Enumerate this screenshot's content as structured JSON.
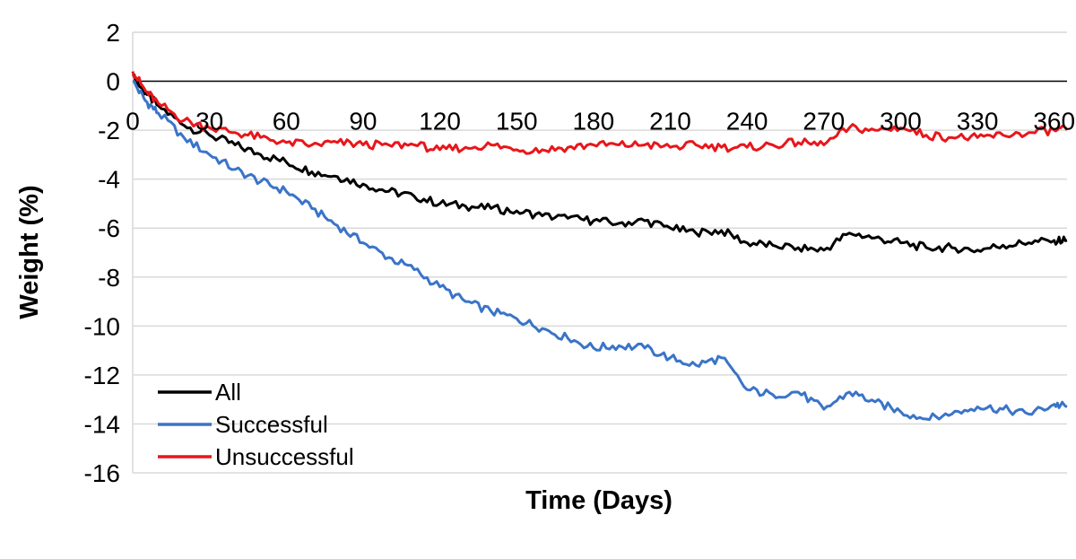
{
  "chart_data": {
    "type": "line",
    "title": "",
    "xlabel": "Time (Days)",
    "ylabel": "Weight (%)",
    "xlim": [
      0,
      365
    ],
    "ylim": [
      -16,
      2
    ],
    "xticks": [
      0,
      30,
      60,
      90,
      120,
      150,
      180,
      210,
      240,
      270,
      300,
      330,
      360
    ],
    "yticks": [
      2,
      0,
      -2,
      -4,
      -6,
      -8,
      -10,
      -12,
      -14,
      -16
    ],
    "grid": true,
    "legend_position": "bottom-left",
    "series": [
      {
        "name": "All",
        "color": "#000000",
        "x": [
          0,
          5,
          10,
          20,
          30,
          40,
          50,
          60,
          70,
          80,
          90,
          100,
          110,
          120,
          130,
          140,
          150,
          160,
          170,
          180,
          190,
          200,
          210,
          220,
          230,
          240,
          250,
          260,
          270,
          280,
          290,
          300,
          310,
          320,
          330,
          340,
          350,
          360,
          365
        ],
        "y": [
          0.2,
          -0.5,
          -1.0,
          -1.8,
          -2.2,
          -2.6,
          -3.0,
          -3.3,
          -3.7,
          -3.9,
          -4.2,
          -4.5,
          -4.7,
          -5.0,
          -5.1,
          -5.2,
          -5.3,
          -5.5,
          -5.6,
          -5.7,
          -5.8,
          -5.7,
          -6.0,
          -6.2,
          -6.1,
          -6.6,
          -6.7,
          -6.8,
          -6.9,
          -6.2,
          -6.4,
          -6.6,
          -6.8,
          -6.8,
          -6.9,
          -6.7,
          -6.6,
          -6.5,
          -6.5
        ]
      },
      {
        "name": "Successful",
        "color": "#3a74c8",
        "x": [
          0,
          5,
          10,
          20,
          30,
          40,
          50,
          60,
          70,
          80,
          90,
          100,
          110,
          120,
          130,
          140,
          150,
          160,
          170,
          180,
          190,
          200,
          210,
          220,
          230,
          240,
          250,
          260,
          270,
          280,
          290,
          300,
          310,
          320,
          330,
          340,
          350,
          360,
          365
        ],
        "y": [
          0.0,
          -0.8,
          -1.3,
          -2.3,
          -3.0,
          -3.6,
          -4.1,
          -4.5,
          -5.2,
          -5.9,
          -6.6,
          -7.2,
          -7.7,
          -8.4,
          -9.0,
          -9.4,
          -9.7,
          -10.1,
          -10.5,
          -10.9,
          -10.8,
          -10.9,
          -11.3,
          -11.6,
          -11.3,
          -12.6,
          -12.8,
          -12.7,
          -13.4,
          -12.7,
          -13.1,
          -13.5,
          -13.8,
          -13.6,
          -13.3,
          -13.4,
          -13.6,
          -13.2,
          -13.3
        ]
      },
      {
        "name": "Unsuccessful",
        "color": "#e8161b",
        "x": [
          0,
          5,
          10,
          20,
          30,
          40,
          50,
          60,
          70,
          80,
          90,
          100,
          110,
          120,
          130,
          140,
          150,
          160,
          170,
          180,
          190,
          200,
          210,
          220,
          230,
          240,
          250,
          260,
          270,
          280,
          290,
          300,
          310,
          320,
          330,
          340,
          350,
          360,
          365
        ],
        "y": [
          0.4,
          -0.4,
          -0.9,
          -1.6,
          -1.9,
          -2.1,
          -2.3,
          -2.5,
          -2.6,
          -2.5,
          -2.6,
          -2.6,
          -2.6,
          -2.8,
          -2.7,
          -2.6,
          -2.8,
          -2.8,
          -2.7,
          -2.6,
          -2.6,
          -2.6,
          -2.7,
          -2.6,
          -2.7,
          -2.7,
          -2.6,
          -2.5,
          -2.6,
          -1.9,
          -2.0,
          -1.9,
          -2.2,
          -2.3,
          -2.3,
          -2.2,
          -2.1,
          -2.0,
          -2.0
        ]
      }
    ]
  }
}
